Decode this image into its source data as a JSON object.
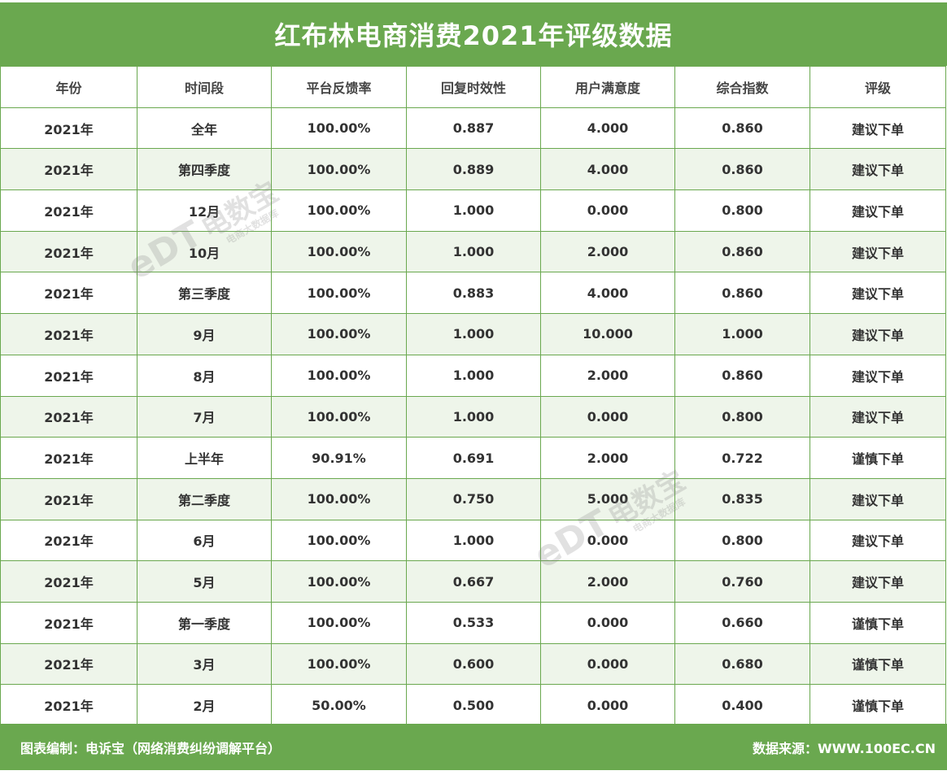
{
  "title": "红布林电商消费2021年评级数据",
  "headers": [
    "年份",
    "时间段",
    "平台反馈率",
    "回复时效性",
    "用户满意度",
    "综合指数",
    "评级"
  ],
  "rows": [
    [
      "2021年",
      "全年",
      "100.00%",
      "0.887",
      "4.000",
      "0.860",
      "建议下单"
    ],
    [
      "2021年",
      "第四季度",
      "100.00%",
      "0.889",
      "4.000",
      "0.860",
      "建议下单"
    ],
    [
      "2021年",
      "12月",
      "100.00%",
      "1.000",
      "0.000",
      "0.800",
      "建议下单"
    ],
    [
      "2021年",
      "10月",
      "100.00%",
      "1.000",
      "2.000",
      "0.860",
      "建议下单"
    ],
    [
      "2021年",
      "第三季度",
      "100.00%",
      "0.883",
      "4.000",
      "0.860",
      "建议下单"
    ],
    [
      "2021年",
      "9月",
      "100.00%",
      "1.000",
      "10.000",
      "1.000",
      "建议下单"
    ],
    [
      "2021年",
      "8月",
      "100.00%",
      "1.000",
      "2.000",
      "0.860",
      "建议下单"
    ],
    [
      "2021年",
      "7月",
      "100.00%",
      "1.000",
      "0.000",
      "0.800",
      "建议下单"
    ],
    [
      "2021年",
      "上半年",
      "90.91%",
      "0.691",
      "2.000",
      "0.722",
      "谨慎下单"
    ],
    [
      "2021年",
      "第二季度",
      "100.00%",
      "0.750",
      "5.000",
      "0.835",
      "建议下单"
    ],
    [
      "2021年",
      "6月",
      "100.00%",
      "1.000",
      "0.000",
      "0.800",
      "建议下单"
    ],
    [
      "2021年",
      "5月",
      "100.00%",
      "0.667",
      "2.000",
      "0.760",
      "建议下单"
    ],
    [
      "2021年",
      "第一季度",
      "100.00%",
      "0.533",
      "0.000",
      "0.660",
      "谨慎下单"
    ],
    [
      "2021年",
      "3月",
      "100.00%",
      "0.600",
      "0.000",
      "0.680",
      "谨慎下单"
    ],
    [
      "2021年",
      "2月",
      "50.00%",
      "0.500",
      "0.000",
      "0.400",
      "谨慎下单"
    ]
  ],
  "footer": {
    "left": "图表编制：电诉宝（网络消费纠纷调解平台）",
    "right": "数据来源：WWW.100EC.CN"
  },
  "watermark": {
    "logo": "eDT",
    "brand": "电数宝",
    "sub": "电商大数据库"
  },
  "colors": {
    "accent": "#6aa84f",
    "alt_row": "#eef5ea"
  }
}
